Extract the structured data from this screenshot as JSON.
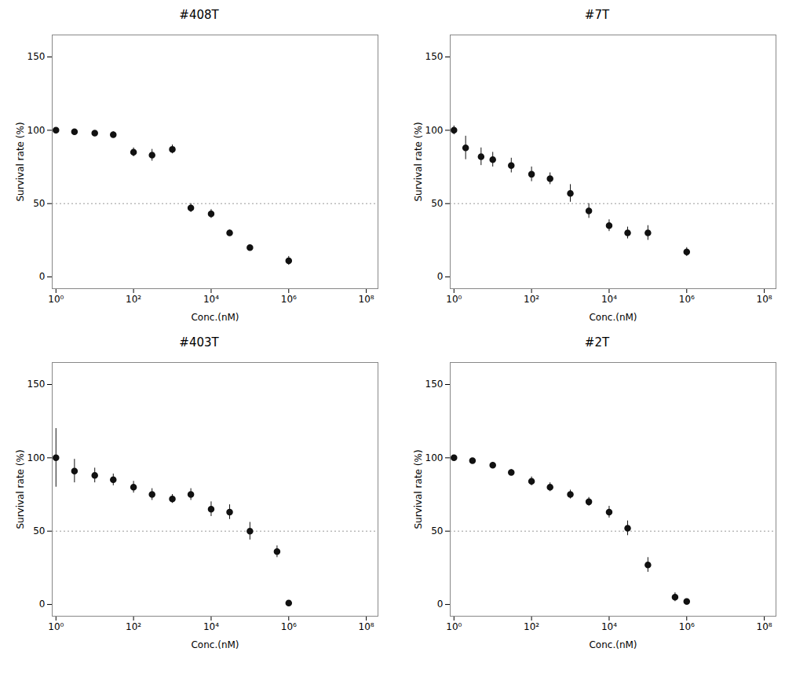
{
  "chart_data": [
    {
      "type": "scatter",
      "title": "#408T",
      "log": "x",
      "marker": "o",
      "color": "#111111",
      "x": [
        1,
        3,
        10,
        30,
        100,
        300,
        1000,
        3000,
        10000,
        30000,
        100000,
        1000000
      ],
      "values": [
        100,
        99,
        98,
        97,
        85,
        83,
        87,
        47,
        43,
        30,
        20,
        11
      ],
      "yerr": [
        1,
        1,
        1,
        2,
        3,
        4,
        3,
        3,
        3,
        2,
        2,
        3
      ],
      "reference_line": {
        "y": 50,
        "color": "#999999",
        "line_style": "dotted"
      },
      "xlabel": "Conc.(nM)",
      "ylabel": "Survival rate (%)",
      "xlim": [
        0.8,
        200000000
      ],
      "ylim": [
        -8,
        165
      ],
      "xticks": [
        {
          "value": 1,
          "label": "10⁰"
        },
        {
          "value": 100,
          "label": "10²"
        },
        {
          "value": 10000,
          "label": "10⁴"
        },
        {
          "value": 1000000,
          "label": "10⁶"
        },
        {
          "value": 100000000,
          "label": "10⁸"
        }
      ],
      "yticks": [
        0,
        50,
        100,
        150
      ]
    },
    {
      "type": "scatter",
      "title": "#7T",
      "log": "x",
      "marker": "o",
      "color": "#111111",
      "x": [
        1,
        2,
        5,
        10,
        30,
        100,
        300,
        1000,
        3000,
        10000,
        30000,
        100000,
        1000000
      ],
      "values": [
        100,
        88,
        82,
        80,
        76,
        70,
        67,
        57,
        45,
        35,
        30,
        30,
        17
      ],
      "yerr": [
        3,
        8,
        6,
        5,
        5,
        5,
        4,
        6,
        5,
        4,
        4,
        5,
        3
      ],
      "reference_line": {
        "y": 50,
        "color": "#999999",
        "line_style": "dotted"
      },
      "xlabel": "Conc.(nM)",
      "ylabel": "Survival rate (%)",
      "xlim": [
        0.8,
        200000000
      ],
      "ylim": [
        -8,
        165
      ],
      "xticks": [
        {
          "value": 1,
          "label": "10⁰"
        },
        {
          "value": 100,
          "label": "10²"
        },
        {
          "value": 10000,
          "label": "10⁴"
        },
        {
          "value": 1000000,
          "label": "10⁶"
        },
        {
          "value": 100000000,
          "label": "10⁸"
        }
      ],
      "yticks": [
        0,
        50,
        100,
        150
      ]
    },
    {
      "type": "scatter",
      "title": "#403T",
      "log": "x",
      "marker": "o",
      "color": "#111111",
      "x": [
        1,
        3,
        10,
        30,
        100,
        300,
        1000,
        3000,
        10000,
        30000,
        100000,
        500000,
        1000000
      ],
      "values": [
        100,
        91,
        88,
        85,
        80,
        75,
        72,
        75,
        65,
        63,
        50,
        36,
        1
      ],
      "yerr": [
        20,
        8,
        5,
        4,
        4,
        4,
        3,
        4,
        5,
        5,
        6,
        4,
        1
      ],
      "reference_line": {
        "y": 50,
        "color": "#999999",
        "line_style": "dotted"
      },
      "xlabel": "Conc.(nM)",
      "ylabel": "Survival rate (%)",
      "xlim": [
        0.8,
        200000000
      ],
      "ylim": [
        -8,
        165
      ],
      "xticks": [
        {
          "value": 1,
          "label": "10⁰"
        },
        {
          "value": 100,
          "label": "10²"
        },
        {
          "value": 10000,
          "label": "10⁴"
        },
        {
          "value": 1000000,
          "label": "10⁶"
        },
        {
          "value": 100000000,
          "label": "10⁸"
        }
      ],
      "yticks": [
        0,
        50,
        100,
        150
      ]
    },
    {
      "type": "scatter",
      "title": "#2T",
      "log": "x",
      "marker": "o",
      "color": "#111111",
      "x": [
        1,
        3,
        10,
        30,
        100,
        300,
        1000,
        3000,
        10000,
        30000,
        100000,
        500000,
        1000000
      ],
      "values": [
        100,
        98,
        95,
        90,
        84,
        80,
        75,
        70,
        63,
        52,
        27,
        5,
        2
      ],
      "yerr": [
        1,
        1,
        2,
        2,
        3,
        3,
        3,
        3,
        4,
        5,
        5,
        3,
        1
      ],
      "reference_line": {
        "y": 50,
        "color": "#999999",
        "line_style": "dotted"
      },
      "xlabel": "Conc.(nM)",
      "ylabel": "Survival rate (%)",
      "xlim": [
        0.8,
        200000000
      ],
      "ylim": [
        -8,
        165
      ],
      "xticks": [
        {
          "value": 1,
          "label": "10⁰"
        },
        {
          "value": 100,
          "label": "10²"
        },
        {
          "value": 10000,
          "label": "10⁴"
        },
        {
          "value": 1000000,
          "label": "10⁶"
        },
        {
          "value": 100000000,
          "label": "10⁸"
        }
      ],
      "yticks": [
        0,
        50,
        100,
        150
      ]
    }
  ]
}
